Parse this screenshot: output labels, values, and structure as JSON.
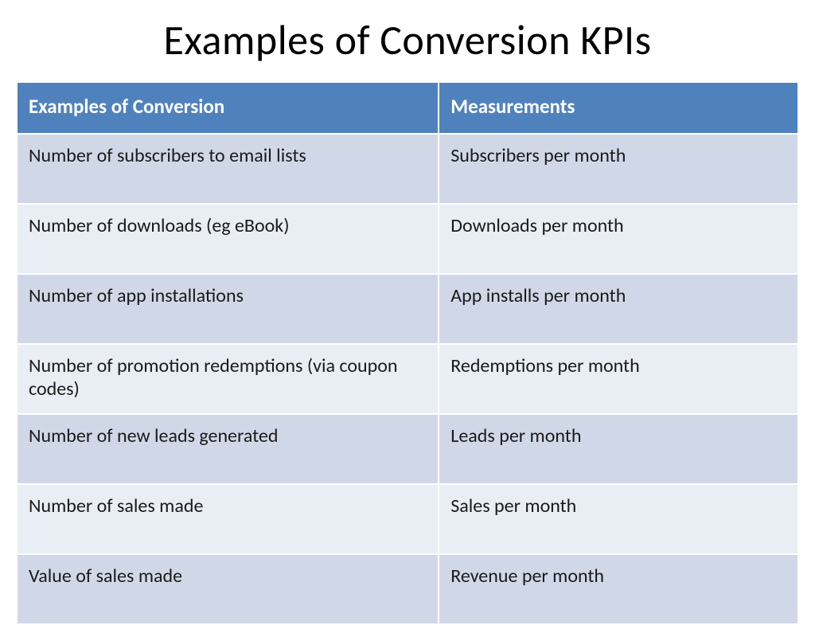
{
  "slide": {
    "title": "Examples of Conversion KPIs",
    "background_color": "#ffffff",
    "title_color": "#000000",
    "title_fontsize": 52
  },
  "table": {
    "type": "table",
    "header_bg": "#4f81bd",
    "header_text_color": "#ffffff",
    "row_bg_odd": "#d0d8e8",
    "row_bg_even": "#e9edf4",
    "border_color": "#ffffff",
    "text_color": "#1a1a1a",
    "header_fontsize": 25,
    "cell_fontsize": 24,
    "column_widths": [
      "54%",
      "46%"
    ],
    "columns": [
      "Examples of Conversion",
      "Measurements"
    ],
    "rows": [
      [
        "Number of subscribers to email lists",
        "Subscribers per month"
      ],
      [
        "Number of downloads (eg eBook)",
        "Downloads per month"
      ],
      [
        "Number of app installations",
        "App installs per month"
      ],
      [
        "Number of promotion redemptions (via coupon codes)",
        "Redemptions per month"
      ],
      [
        "Number of new leads generated",
        "Leads per month"
      ],
      [
        "Number of sales made",
        "Sales per month"
      ],
      [
        "Value of sales made",
        "Revenue per month"
      ]
    ]
  }
}
